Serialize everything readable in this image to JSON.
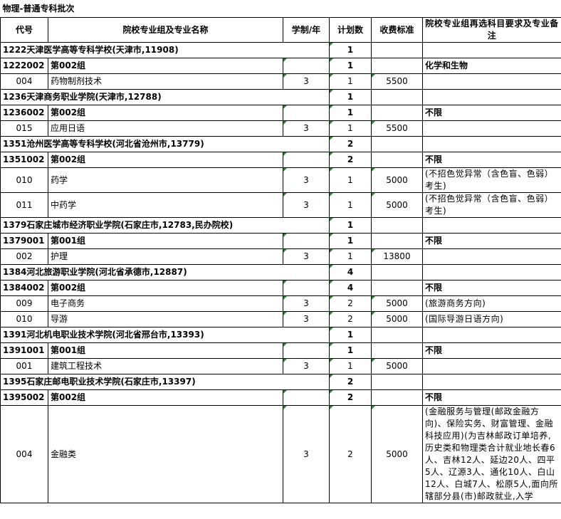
{
  "title": "物理-普通专科批次",
  "headers": [
    "代号",
    "院校专业组及专业名称",
    "学制/年",
    "计划数",
    "收费标准",
    "院校专业组再选科目要求及专业备注"
  ],
  "rows": [
    {
      "kind": "school",
      "name": "1222天津医学高等专科学校(天津市,11908)",
      "plan": 1
    },
    {
      "kind": "group",
      "code": "1222002",
      "name": "第002组",
      "plan": 1,
      "note": "化学和生物"
    },
    {
      "kind": "major",
      "code": "004",
      "name": "药物制剂技术",
      "years": 3,
      "plan": 1,
      "fee": 5500
    },
    {
      "kind": "school",
      "name": "1236天津商务职业学院(天津市,12788)",
      "plan": 1
    },
    {
      "kind": "group",
      "code": "1236002",
      "name": "第002组",
      "plan": 1,
      "note": "不限"
    },
    {
      "kind": "major",
      "code": "015",
      "name": "应用日语",
      "years": 3,
      "plan": 1,
      "fee": 5500
    },
    {
      "kind": "school",
      "name": "1351沧州医学高等专科学校(河北省沧州市,13779)",
      "plan": 2
    },
    {
      "kind": "group",
      "code": "1351002",
      "name": "第002组",
      "plan": 2,
      "note": "不限"
    },
    {
      "kind": "major",
      "code": "010",
      "name": "药学",
      "years": 3,
      "plan": 1,
      "fee": 5000,
      "note": "(不招色觉异常（含色盲、色弱）考生)"
    },
    {
      "kind": "major",
      "code": "011",
      "name": "中药学",
      "years": 3,
      "plan": 1,
      "fee": 5000,
      "note": "(不招色觉异常（含色盲、色弱）考生)"
    },
    {
      "kind": "school",
      "name": "1379石家庄城市经济职业学院(石家庄市,12783,民办院校)",
      "plan": 1
    },
    {
      "kind": "group",
      "code": "1379001",
      "name": "第001组",
      "plan": 1,
      "note": "不限"
    },
    {
      "kind": "major",
      "code": "002",
      "name": "护理",
      "years": 3,
      "plan": 1,
      "fee": 13800
    },
    {
      "kind": "school",
      "name": "1384河北旅游职业学院(河北省承德市,12887)",
      "plan": 4
    },
    {
      "kind": "group",
      "code": "1384002",
      "name": "第002组",
      "plan": 4,
      "note": "不限"
    },
    {
      "kind": "major",
      "code": "009",
      "name": "电子商务",
      "years": 3,
      "plan": 2,
      "fee": 5000,
      "note": "(旅游商务方向)"
    },
    {
      "kind": "major",
      "code": "010",
      "name": "导游",
      "years": 3,
      "plan": 2,
      "fee": 5000,
      "note": "(国际导游日语方向)"
    },
    {
      "kind": "school",
      "name": "1391河北机电职业技术学院(河北省邢台市,13393)",
      "plan": 1
    },
    {
      "kind": "group",
      "code": "1391001",
      "name": "第001组",
      "plan": 1,
      "note": "不限"
    },
    {
      "kind": "major",
      "code": "001",
      "name": "建筑工程技术",
      "years": 3,
      "plan": 1,
      "fee": 5000
    },
    {
      "kind": "school",
      "name": "1395石家庄邮电职业技术学院(石家庄市,13397)",
      "plan": 2
    },
    {
      "kind": "group",
      "code": "1395002",
      "name": "第002组",
      "plan": 2,
      "note": "不限"
    },
    {
      "kind": "major",
      "code": "004",
      "name": "金融类",
      "years": 3,
      "plan": 2,
      "fee": 5000,
      "note": "(金融服务与管理(邮政金融方向)、保险实务、财富管理、金融科技应用)(为吉林邮政订单培养,历史类和物理类合计就业地长春6人、吉林12人、延边20人、四平5人、辽源3人、通化10人、白山12人、白城7人、松原5人,面向所辖部分县(市)邮政就业,入学"
    }
  ]
}
